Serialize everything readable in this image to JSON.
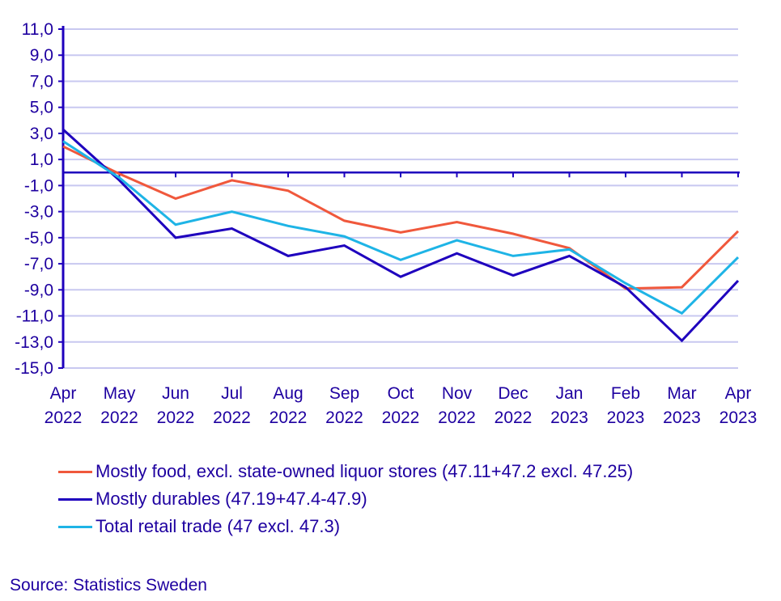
{
  "chart_data": {
    "type": "line",
    "categories": [
      "Apr 2022",
      "May 2022",
      "Jun 2022",
      "Jul 2022",
      "Aug 2022",
      "Sep 2022",
      "Oct 2022",
      "Nov 2022",
      "Dec 2022",
      "Jan 2023",
      "Feb 2023",
      "Mar 2023",
      "Apr 2023"
    ],
    "category_lines": [
      [
        "Apr",
        "2022"
      ],
      [
        "May",
        "2022"
      ],
      [
        "Jun",
        "2022"
      ],
      [
        "Jul",
        "2022"
      ],
      [
        "Aug",
        "2022"
      ],
      [
        "Sep",
        "2022"
      ],
      [
        "Oct",
        "2022"
      ],
      [
        "Nov",
        "2022"
      ],
      [
        "Dec",
        "2022"
      ],
      [
        "Jan",
        "2023"
      ],
      [
        "Feb",
        "2023"
      ],
      [
        "Mar",
        "2023"
      ],
      [
        "Apr",
        "2023"
      ]
    ],
    "ylim": [
      -15,
      11
    ],
    "yticks": [
      "11,0",
      "9,0",
      "7,0",
      "5,0",
      "3,0",
      "1,0",
      "-1,0",
      "-3,0",
      "-5,0",
      "-7,0",
      "-9,0",
      "-11,0",
      "-13,0",
      "-15,0"
    ],
    "grid": true,
    "legend_position": "bottom",
    "series": [
      {
        "name": "Mostly food, excl. state-owned liquor stores (47.11+47.2 excl. 47.25)",
        "color": "#f0583c",
        "values": [
          2.0,
          -0.1,
          -2.0,
          -0.6,
          -1.4,
          -3.7,
          -4.6,
          -3.8,
          -4.7,
          -5.8,
          -8.9,
          -8.8,
          -4.5
        ]
      },
      {
        "name": "Mostly durables (47.19+47.4-47.9)",
        "color": "#1e00be",
        "values": [
          3.3,
          -0.6,
          -5.0,
          -4.3,
          -6.4,
          -5.6,
          -8.0,
          -6.2,
          -7.9,
          -6.4,
          -8.8,
          -12.9,
          -8.3
        ]
      },
      {
        "name": "Total retail trade (47 excl. 47.3)",
        "color": "#1eb4e6",
        "values": [
          2.4,
          -0.4,
          -4.0,
          -3.0,
          -4.1,
          -4.9,
          -6.7,
          -5.2,
          -6.4,
          -5.9,
          -8.5,
          -10.8,
          -6.5
        ]
      }
    ],
    "grid_color": "#c8c8f0",
    "axis_color": "#1e00be"
  },
  "source": "Source: Statistics Sweden"
}
